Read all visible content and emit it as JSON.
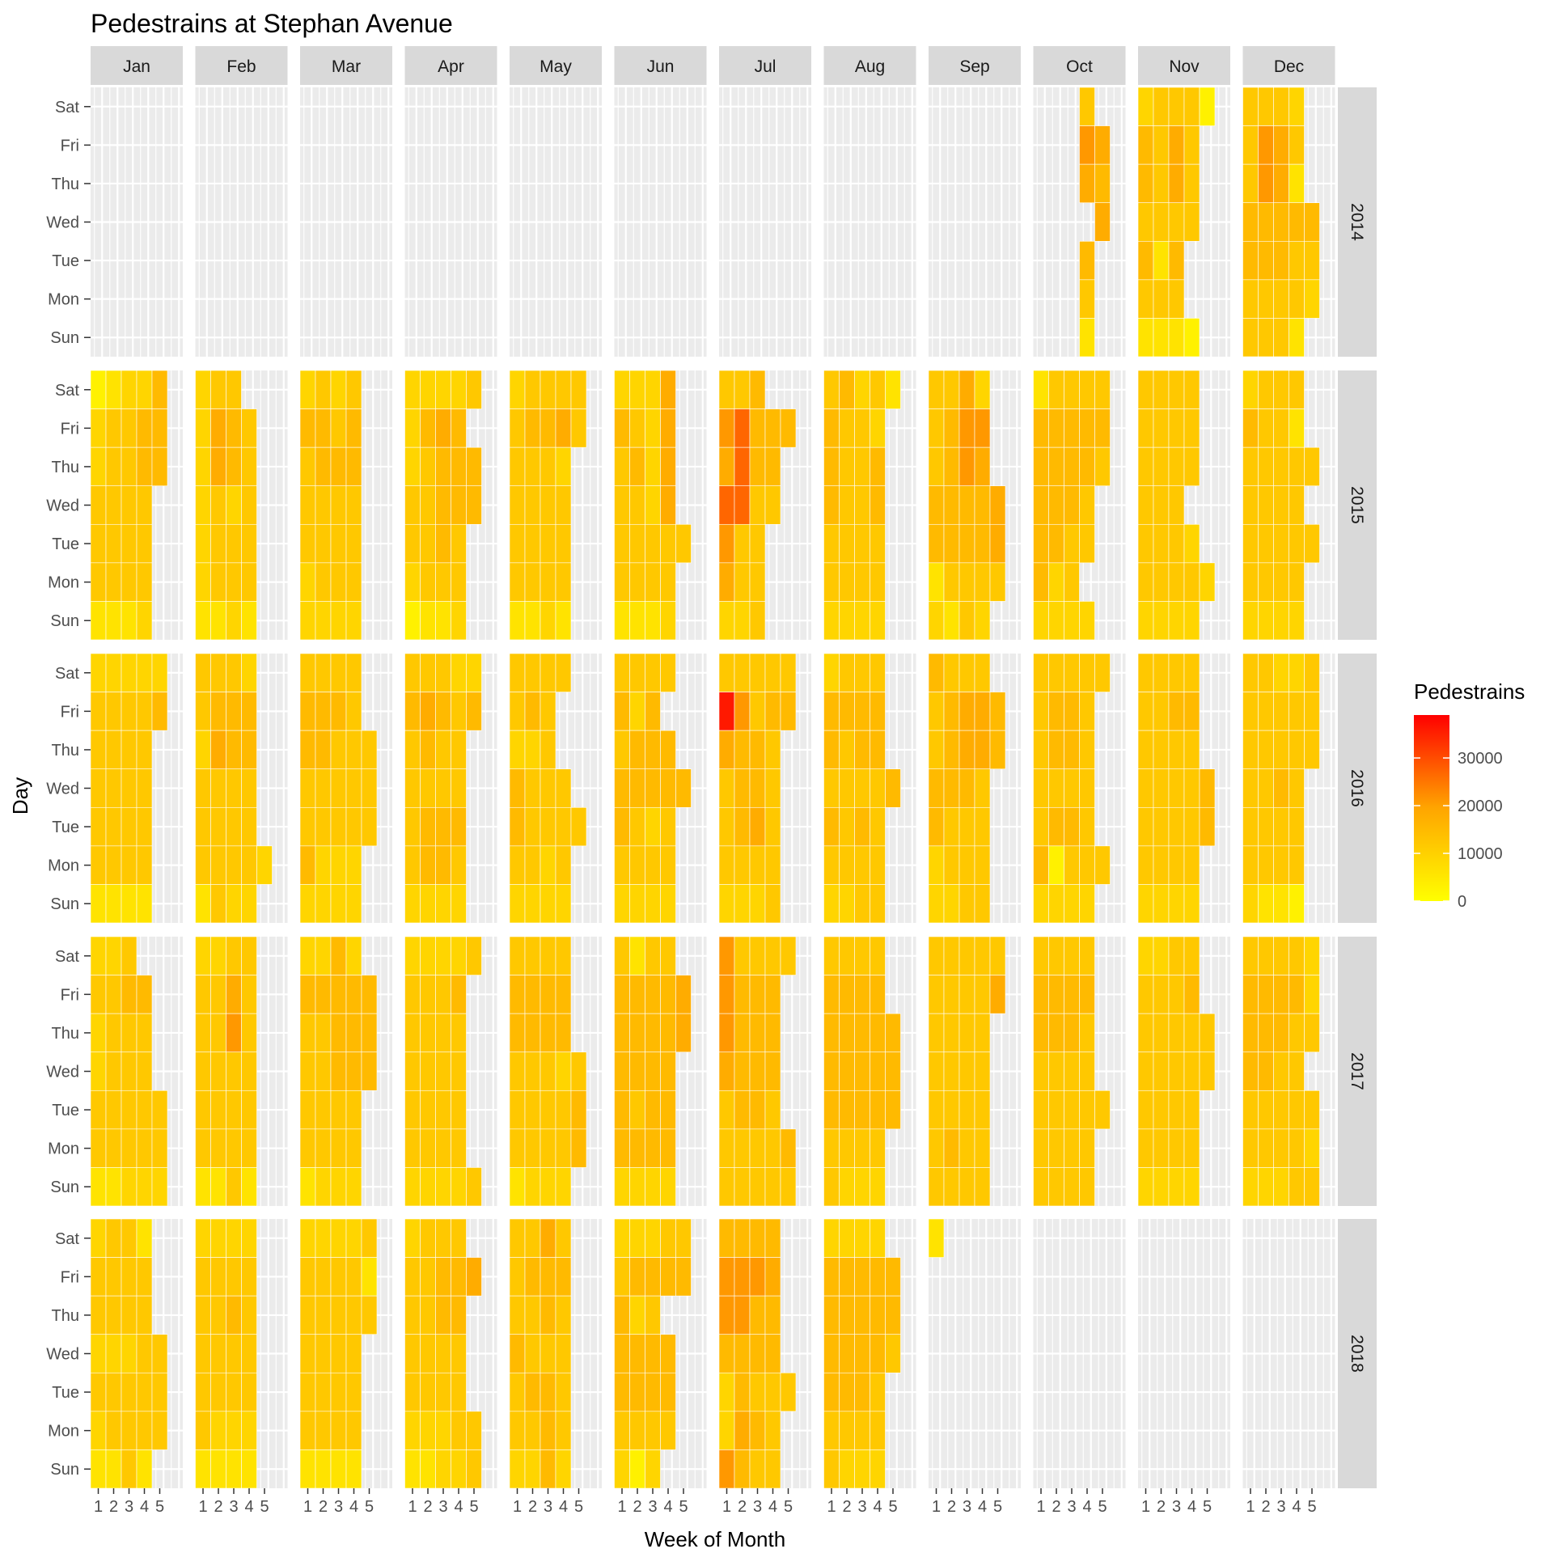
{
  "chart_data": {
    "type": "heatmap",
    "title": "Pedestrains at Stephan Avenue",
    "xlabel": "Week of Month",
    "ylabel": "Day",
    "x_ticks": [
      1,
      2,
      3,
      4,
      5
    ],
    "days": [
      "Sat",
      "Fri",
      "Thu",
      "Wed",
      "Tue",
      "Mon",
      "Sun"
    ],
    "months": [
      "Jan",
      "Feb",
      "Mar",
      "Apr",
      "May",
      "Jun",
      "Jul",
      "Aug",
      "Sep",
      "Oct",
      "Nov",
      "Dec"
    ],
    "years": [
      "2014",
      "2015",
      "2016",
      "2017",
      "2018"
    ],
    "legend": {
      "title": "Pedestrains",
      "ticks": [
        0,
        10000,
        20000,
        30000
      ],
      "min": 0,
      "max": 39000,
      "colors": [
        "#FFFF00",
        "#FFA500",
        "#FF0000"
      ]
    },
    "grid": true,
    "value_encoding": "rows per day Sat..Sun, chars per week 1..6 of month: '.' = no data, digit d = approx d*3000 pedestrians (a=30000, b=33000, c=36000)",
    "panels": {
      "2014": {
        "Jan": [
          "......",
          ".......",
          ".......",
          "......",
          ".......",
          ".......",
          "......."
        ],
        "Feb": [
          "......",
          ".......",
          ".......",
          "......",
          ".......",
          ".......",
          "......."
        ],
        "Mar": [
          "......",
          ".......",
          ".......",
          "......",
          ".......",
          ".......",
          "......."
        ],
        "Apr": [
          "......",
          ".......",
          ".......",
          "......",
          ".......",
          ".......",
          "......."
        ],
        "May": [
          "......",
          ".......",
          ".......",
          "......",
          ".......",
          ".......",
          "......."
        ],
        "Jun": [
          "......",
          ".......",
          ".......",
          "......",
          ".......",
          ".......",
          "......."
        ],
        "Jul": [
          "......",
          ".......",
          ".......",
          "......",
          ".......",
          ".......",
          "......."
        ],
        "Aug": [
          "......",
          ".......",
          ".......",
          "......",
          ".......",
          ".......",
          "......."
        ],
        "Sep": [
          "......",
          ".......",
          ".......",
          "......",
          ".......",
          ".......",
          "......."
        ],
        "Oct": [
          "...4..",
          "...76.",
          "...65.",
          "....6.",
          "...5..",
          "...4..",
          "...2.."
        ],
        "Nov": [
          "34441.",
          "5464..",
          "5464..",
          "4444..",
          "525...",
          "444...",
          "2221.."
        ],
        "Dec": [
          "4443..",
          "4764..",
          "4762..",
          "55555.",
          "55544.",
          "44443.",
          "4442.."
        ]
      },
      "2015": {
        "Jan": [
          "12335.",
          "34455.",
          "34455.",
          "4444..",
          "4444..",
          "4444..",
          "2223.."
        ],
        "Feb": [
          "344...",
          "3654..",
          "3654..",
          "3434..",
          "3444..",
          "3444..",
          "2232.."
        ],
        "Mar": [
          "3434..",
          "5545..",
          "4555..",
          "4444..",
          "4444..",
          "3444..",
          "3333.."
        ],
        "Apr": [
          "33334.",
          "3565..",
          "34555.",
          "44555.",
          "4454..",
          "3444..",
          "1223.."
        ],
        "May": [
          "34444.",
          "45564.",
          "4443..",
          "4444..",
          "4444..",
          "4444..",
          "2232.."
        ],
        "Jun": [
          "3336..",
          "5436..",
          "4536..",
          "4436..",
          "44444.",
          "4444..",
          "2223.."
        ],
        "Jul": [
          "445...",
          "79555.",
          "6955..",
          "9944..",
          "744...",
          "644...",
          "334..."
        ],
        "Aug": [
          "45342.",
          "5443..",
          "5445..",
          "5445..",
          "4444..",
          "4444..",
          "3333.."
        ],
        "Sep": [
          "4463..",
          "4577..",
          "4576..",
          "55556.",
          "55556.",
          "24444.",
          "3243.."
        ],
        "Oct": [
          "24444.",
          "55555.",
          "55554.",
          "5554..",
          "5544..",
          "534...",
          "3333.."
        ],
        "Nov": [
          "4444..",
          "4444..",
          "4444..",
          "444...",
          "4443..",
          "44443.",
          "3333.."
        ],
        "Dec": [
          "3444..",
          "5442..",
          "44444.",
          "4444..",
          "44444.",
          "4444..",
          "3333.."
        ]
      },
      "2016": {
        "Jan": [
          "33333.",
          "44445.",
          "4444..",
          "4444..",
          "4444..",
          "4444..",
          "2222.."
        ],
        "Feb": [
          "4443..",
          "4555..",
          "3655..",
          "4444..",
          "4444..",
          "44443.",
          "2433.."
        ],
        "Mar": [
          "4444..",
          "5554..",
          "55444.",
          "44444.",
          "44444.",
          "5333..",
          "3333.."
        ],
        "Apr": [
          "44433.",
          "56545.",
          "4544..",
          "4444..",
          "4555..",
          "4554..",
          "3333.."
        ],
        "May": [
          "4444..",
          "454...",
          "334...",
          "5444..",
          "54444.",
          "4434..",
          "3333.."
        ],
        "Jun": [
          "4444..",
          "535...",
          "4555..",
          "55555.",
          "5434..",
          "4444..",
          "3333.."
        ],
        "Jul": [
          "44444.",
          "c7455.",
          "6554..",
          "4554..",
          "4564..",
          "4444..",
          "3334.."
        ],
        "Aug": [
          "3444..",
          "5555..",
          "5455..",
          "44445.",
          "5454..",
          "4444..",
          "3344.."
        ],
        "Sep": [
          "5444..",
          "45665.",
          "45665.",
          "5554..",
          "5444..",
          "3444..",
          "3344.."
        ],
        "Oct": [
          "44444.",
          "4554..",
          "4554..",
          "4444..",
          "4554..",
          "51444.",
          "3333.."
        ],
        "Nov": [
          "4444..",
          "4455..",
          "4444..",
          "44445.",
          "44445.",
          "4444..",
          "3333.."
        ],
        "Dec": [
          "44334.",
          "44444.",
          "44444.",
          "4454..",
          "4444..",
          "4444..",
          "3221.."
        ]
      },
      "2017": {
        "Jan": [
          "334...",
          "4455..",
          "3444..",
          "3444..",
          "44444.",
          "44444.",
          "22333."
        ],
        "Feb": [
          "3344..",
          "4464..",
          "4474..",
          "4444..",
          "4444..",
          "4444..",
          "2242.."
        ],
        "Mar": [
          "3353..",
          "55555.",
          "44555.",
          "44555.",
          "4444..",
          "4444..",
          "2333.."
        ],
        "Apr": [
          "33334.",
          "4445..",
          "4444..",
          "4444..",
          "4444..",
          "4444..",
          "33334."
        ],
        "May": [
          "4444..",
          "5555..",
          "5555..",
          "44434.",
          "44445.",
          "44445.",
          "2333.."
        ],
        "Jun": [
          "4244..",
          "55556.",
          "55556.",
          "5555..",
          "5455..",
          "5555..",
          "3333.."
        ],
        "Jul": [
          "74444.",
          "7555..",
          "7555..",
          "6555..",
          "4554..",
          "44445.",
          "44444."
        ],
        "Aug": [
          "4444..",
          "5555..",
          "55555.",
          "55555.",
          "55555.",
          "4444..",
          "4333.."
        ],
        "Sep": [
          "44444.",
          "44446.",
          "4444..",
          "4444..",
          "4444..",
          "4544..",
          "4444.."
        ],
        "Oct": [
          "4444..",
          "5555..",
          "5554..",
          "4444..",
          "44444.",
          "4444..",
          "4444.."
        ],
        "Nov": [
          "3344..",
          "4445..",
          "44444.",
          "44444.",
          "4444..",
          "4444..",
          "3333.."
        ],
        "Dec": [
          "44443.",
          "55553.",
          "55544.",
          "5544..",
          "44444.",
          "44443.",
          "33344."
        ]
      },
      "2018": {
        "Jan": [
          "3442..",
          "4444..",
          "4444..",
          "33344.",
          "44444.",
          "34444.",
          "2242.."
        ],
        "Feb": [
          "3333..",
          "4444..",
          "4454..",
          "4444..",
          "4444..",
          "4333..",
          "2222.."
        ],
        "Mar": [
          "33334.",
          "44442.",
          "44444.",
          "4444..",
          "4444..",
          "4444..",
          "2222.."
        ],
        "Apr": [
          "3444..",
          "44556.",
          "4455..",
          "4444..",
          "4444..",
          "33344.",
          "22334."
        ],
        "May": [
          "4464..",
          "4555..",
          "4454..",
          "5444..",
          "4554..",
          "4454..",
          "3353.."
        ],
        "Jun": [
          "33344.",
          "45555.",
          "534...",
          "5555..",
          "5555..",
          "4444..",
          "313..."
        ],
        "Jul": [
          "5555..",
          "7776..",
          "7755..",
          "5555..",
          "35444.",
          "3654..",
          "7544.."
        ],
        "Aug": [
          "3333..",
          "55555.",
          "55555.",
          "55554.",
          "5554..",
          "4444..",
          "4333.."
        ],
        "Sep": [
          "2.....",
          ".......",
          ".......",
          "......",
          ".......",
          ".......",
          "......."
        ],
        "Oct": [
          "......",
          ".......",
          ".......",
          "......",
          ".......",
          ".......",
          "......."
        ],
        "Nov": [
          "......",
          ".......",
          ".......",
          "......",
          ".......",
          ".......",
          "......."
        ],
        "Dec": [
          "......",
          ".......",
          ".......",
          "......",
          ".......",
          ".......",
          "......."
        ]
      }
    }
  }
}
